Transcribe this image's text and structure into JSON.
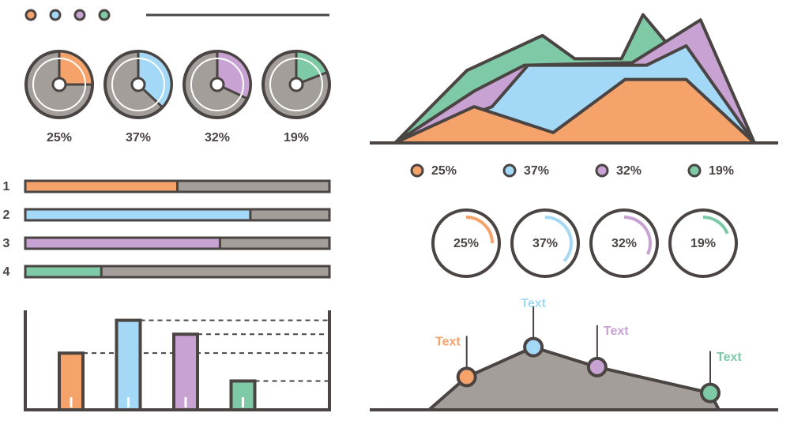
{
  "chart_data": [
    {
      "type": "pie",
      "values": [
        25,
        37,
        32,
        19
      ],
      "value_labels": [
        "25%",
        "37%",
        "32%",
        "19%"
      ],
      "colors": [
        "#f5a26b",
        "#a3d9f6",
        "#c7a2d3",
        "#7fcaa6"
      ]
    },
    {
      "type": "hbar",
      "categories": [
        "1",
        "2",
        "3",
        "4"
      ],
      "values": [
        50,
        74,
        64,
        25
      ],
      "xlim": [
        0,
        100
      ],
      "colors": [
        "#f5a26b",
        "#a3d9f6",
        "#c7a2d3",
        "#7fcaa6"
      ]
    },
    {
      "type": "area",
      "xlim": [
        0,
        100
      ],
      "ylim": [
        0,
        100
      ],
      "series": [
        {
          "name": "25%",
          "color": "#f5a26b",
          "x": [
            0,
            22,
            44,
            64,
            81,
            100
          ],
          "values": [
            0,
            28,
            8,
            49,
            49,
            0
          ]
        },
        {
          "name": "37%",
          "color": "#a3d9f6",
          "x": [
            0,
            27,
            37,
            70,
            81,
            100
          ],
          "values": [
            0,
            28,
            60,
            60,
            75,
            0
          ]
        },
        {
          "name": "32%",
          "color": "#c7a2d3",
          "x": [
            0,
            22,
            36,
            66,
            85,
            100
          ],
          "values": [
            0,
            40,
            60,
            62,
            95,
            0
          ]
        },
        {
          "name": "19%",
          "color": "#7fcaa6",
          "x": [
            0,
            20,
            41,
            50,
            63,
            69,
            75,
            100
          ],
          "values": [
            0,
            56,
            83,
            65,
            65,
            99,
            79,
            0
          ]
        }
      ]
    },
    {
      "type": "ring",
      "values": [
        25,
        37,
        32,
        19
      ],
      "value_labels": [
        "25%",
        "37%",
        "32%",
        "19%"
      ],
      "colors": [
        "#f5a26b",
        "#a3d9f6",
        "#c7a2d3",
        "#7fcaa6"
      ]
    },
    {
      "type": "bar",
      "values": [
        57,
        90,
        76,
        29
      ],
      "ylim": [
        0,
        100
      ],
      "colors": [
        "#f5a26b",
        "#a3d9f6",
        "#c7a2d3",
        "#7fcaa6"
      ]
    },
    {
      "type": "line",
      "x": [
        0,
        13,
        36,
        58,
        97,
        100
      ],
      "values": [
        0,
        33,
        63,
        43,
        17,
        0
      ],
      "xlim": [
        0,
        100
      ],
      "ylim": [
        0,
        100
      ],
      "color": "#a39e9a",
      "annotations": [
        null,
        "Text",
        "Text",
        "Text",
        "Text",
        null
      ],
      "annotation_colors": [
        null,
        "#f5a26b",
        "#a3d9f6",
        "#c7a2d3",
        "#7fcaa6",
        null
      ]
    }
  ]
}
